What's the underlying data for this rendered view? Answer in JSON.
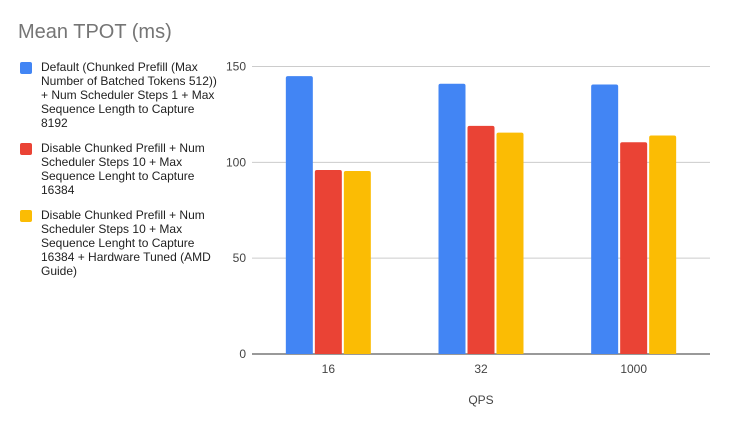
{
  "chart_data": {
    "type": "bar",
    "title": "Mean TPOT (ms)",
    "xlabel": "QPS",
    "ylabel": "",
    "categories": [
      "16",
      "32",
      "1000"
    ],
    "ylim": [
      0,
      150
    ],
    "yticks": [
      "0",
      "50",
      "100",
      "150"
    ],
    "grid": true,
    "legend_placement": "left",
    "series": [
      {
        "name": "Default (Chunked Prefill (Max Number of Batched Tokens 512)) + Num Scheduler Steps 1 + Max Sequence Length to Capture 8192",
        "color": "#4285f4",
        "values": [
          145,
          141,
          140.6
        ]
      },
      {
        "name": "Disable Chunked Prefill + Num Scheduler Steps 10 + Max Sequence Lenght to Capture 16384",
        "color": "#ea4335",
        "values": [
          96,
          119,
          110.5
        ]
      },
      {
        "name": "Disable Chunked Prefill + Num Scheduler Steps 10 + Max Sequence Lenght to Capture 16384 + Hardware Tuned (AMD Guide)",
        "color": "#fbbc04",
        "values": [
          95.5,
          115.5,
          114
        ]
      }
    ]
  }
}
